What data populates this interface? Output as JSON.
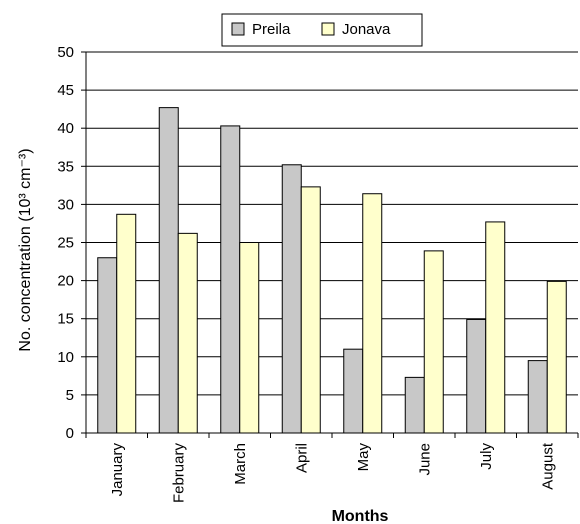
{
  "chart_data": {
    "type": "bar",
    "categories": [
      "January",
      "February",
      "March",
      "April",
      "May",
      "June",
      "July",
      "August"
    ],
    "series": [
      {
        "name": "Preila",
        "values": [
          23.0,
          42.7,
          40.3,
          35.2,
          11.0,
          7.3,
          14.9,
          9.5
        ],
        "color": "#c8c8c8"
      },
      {
        "name": "Jonava",
        "values": [
          28.7,
          26.2,
          25.0,
          32.3,
          31.4,
          23.9,
          27.7,
          19.9
        ],
        "color": "#ffffcc"
      }
    ],
    "xlabel": "Months",
    "ylabel": "No. concentration (10³ cm⁻³)",
    "ylim": [
      0,
      50
    ],
    "yticks": [
      0,
      5,
      10,
      15,
      20,
      25,
      30,
      35,
      40,
      45,
      50
    ],
    "grid": true,
    "legend": "top"
  }
}
